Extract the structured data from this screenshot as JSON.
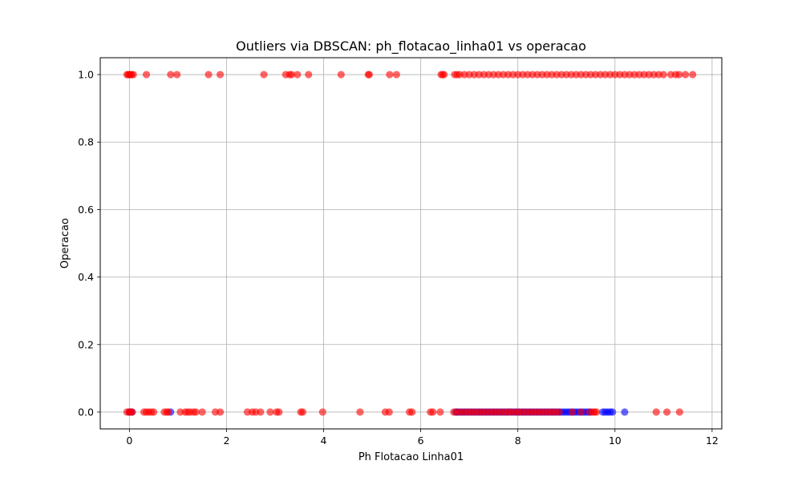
{
  "chart_data": {
    "type": "scatter",
    "title": "Outliers via DBSCAN: ph_flotacao_linha01 vs operacao",
    "xlabel": "Ph Flotacao Linha01",
    "ylabel": "Operacao",
    "xlim": [
      -0.6,
      12.2
    ],
    "ylim": [
      -0.05,
      1.05
    ],
    "xticks": [
      0,
      2,
      4,
      6,
      8,
      10,
      12
    ],
    "yticks": [
      0.0,
      0.2,
      0.4,
      0.6,
      0.8,
      1.0
    ],
    "xtick_labels": [
      "0",
      "2",
      "4",
      "6",
      "8",
      "10",
      "12"
    ],
    "ytick_labels": [
      "0.0",
      "0.2",
      "0.4",
      "0.6",
      "0.8",
      "1.0"
    ],
    "grid": true,
    "series": [
      {
        "color": "#0000ff",
        "alpha": 0.6,
        "points": [
          [
            0.0,
            0
          ],
          [
            0.02,
            0
          ],
          [
            0.05,
            0
          ],
          [
            0.85,
            0
          ],
          [
            6.72,
            0
          ],
          [
            6.75,
            0
          ],
          [
            6.8,
            0
          ],
          [
            6.85,
            0
          ],
          [
            6.9,
            0
          ],
          [
            6.95,
            0
          ],
          [
            7.0,
            0
          ],
          [
            7.05,
            0
          ],
          [
            7.1,
            0
          ],
          [
            7.15,
            0
          ],
          [
            7.2,
            0
          ],
          [
            7.25,
            0
          ],
          [
            7.3,
            0
          ],
          [
            7.35,
            0
          ],
          [
            7.4,
            0
          ],
          [
            7.45,
            0
          ],
          [
            7.5,
            0
          ],
          [
            7.55,
            0
          ],
          [
            7.6,
            0
          ],
          [
            7.65,
            0
          ],
          [
            7.7,
            0
          ],
          [
            7.75,
            0
          ],
          [
            7.8,
            0
          ],
          [
            7.85,
            0
          ],
          [
            7.9,
            0
          ],
          [
            7.95,
            0
          ],
          [
            8.0,
            0
          ],
          [
            8.05,
            0
          ],
          [
            8.1,
            0
          ],
          [
            8.15,
            0
          ],
          [
            8.2,
            0
          ],
          [
            8.25,
            0
          ],
          [
            8.3,
            0
          ],
          [
            8.35,
            0
          ],
          [
            8.4,
            0
          ],
          [
            8.45,
            0
          ],
          [
            8.5,
            0
          ],
          [
            8.55,
            0
          ],
          [
            8.6,
            0
          ],
          [
            8.65,
            0
          ],
          [
            8.7,
            0
          ],
          [
            8.75,
            0
          ],
          [
            8.8,
            0
          ],
          [
            8.85,
            0
          ],
          [
            8.9,
            0
          ],
          [
            8.95,
            0
          ],
          [
            9.0,
            0
          ],
          [
            9.05,
            0
          ],
          [
            9.1,
            0
          ],
          [
            9.15,
            0
          ],
          [
            9.2,
            0
          ],
          [
            9.25,
            0
          ],
          [
            9.3,
            0
          ],
          [
            9.35,
            0
          ],
          [
            9.4,
            0
          ],
          [
            9.45,
            0
          ],
          [
            9.5,
            0
          ],
          [
            9.75,
            0
          ],
          [
            9.8,
            0
          ],
          [
            9.85,
            0
          ],
          [
            9.9,
            0
          ],
          [
            9.95,
            0
          ],
          [
            10.2,
            0
          ]
        ]
      },
      {
        "color": "#ff0000",
        "alpha": 0.6,
        "points": [
          [
            -0.05,
            1
          ],
          [
            -0.02,
            1
          ],
          [
            0.0,
            1
          ],
          [
            0.02,
            1
          ],
          [
            0.05,
            1
          ],
          [
            0.08,
            1
          ],
          [
            0.35,
            1
          ],
          [
            0.85,
            1
          ],
          [
            0.98,
            1
          ],
          [
            1.63,
            1
          ],
          [
            1.87,
            1
          ],
          [
            2.77,
            1
          ],
          [
            3.22,
            1
          ],
          [
            3.3,
            1
          ],
          [
            3.34,
            1
          ],
          [
            3.46,
            1
          ],
          [
            3.69,
            1
          ],
          [
            4.36,
            1
          ],
          [
            4.92,
            1
          ],
          [
            4.94,
            1
          ],
          [
            5.36,
            1
          ],
          [
            5.5,
            1
          ],
          [
            6.42,
            1
          ],
          [
            6.45,
            1
          ],
          [
            6.48,
            1
          ],
          [
            6.7,
            1
          ],
          [
            6.75,
            1
          ],
          [
            6.8,
            1
          ],
          [
            6.9,
            1
          ],
          [
            7.0,
            1
          ],
          [
            7.1,
            1
          ],
          [
            7.2,
            1
          ],
          [
            7.3,
            1
          ],
          [
            7.4,
            1
          ],
          [
            7.5,
            1
          ],
          [
            7.6,
            1
          ],
          [
            7.7,
            1
          ],
          [
            7.8,
            1
          ],
          [
            7.9,
            1
          ],
          [
            8.0,
            1
          ],
          [
            8.1,
            1
          ],
          [
            8.2,
            1
          ],
          [
            8.3,
            1
          ],
          [
            8.4,
            1
          ],
          [
            8.5,
            1
          ],
          [
            8.6,
            1
          ],
          [
            8.7,
            1
          ],
          [
            8.8,
            1
          ],
          [
            8.9,
            1
          ],
          [
            9.0,
            1
          ],
          [
            9.1,
            1
          ],
          [
            9.2,
            1
          ],
          [
            9.3,
            1
          ],
          [
            9.4,
            1
          ],
          [
            9.5,
            1
          ],
          [
            9.6,
            1
          ],
          [
            9.7,
            1
          ],
          [
            9.8,
            1
          ],
          [
            9.9,
            1
          ],
          [
            10.0,
            1
          ],
          [
            10.1,
            1
          ],
          [
            10.2,
            1
          ],
          [
            10.3,
            1
          ],
          [
            10.4,
            1
          ],
          [
            10.5,
            1
          ],
          [
            10.6,
            1
          ],
          [
            10.7,
            1
          ],
          [
            10.8,
            1
          ],
          [
            10.9,
            1
          ],
          [
            11.0,
            1
          ],
          [
            11.15,
            1
          ],
          [
            11.25,
            1
          ],
          [
            11.32,
            1
          ],
          [
            11.45,
            1
          ],
          [
            11.6,
            1
          ],
          [
            -0.05,
            0
          ],
          [
            0.0,
            0
          ],
          [
            0.03,
            0
          ],
          [
            0.06,
            0
          ],
          [
            0.3,
            0
          ],
          [
            0.35,
            0
          ],
          [
            0.4,
            0
          ],
          [
            0.45,
            0
          ],
          [
            0.5,
            0
          ],
          [
            0.72,
            0
          ],
          [
            0.77,
            0
          ],
          [
            0.8,
            0
          ],
          [
            1.05,
            0
          ],
          [
            1.15,
            0
          ],
          [
            1.2,
            0
          ],
          [
            1.25,
            0
          ],
          [
            1.32,
            0
          ],
          [
            1.37,
            0
          ],
          [
            1.5,
            0
          ],
          [
            1.77,
            0
          ],
          [
            1.87,
            0
          ],
          [
            2.43,
            0
          ],
          [
            2.53,
            0
          ],
          [
            2.6,
            0
          ],
          [
            2.7,
            0
          ],
          [
            2.9,
            0
          ],
          [
            3.03,
            0
          ],
          [
            3.08,
            0
          ],
          [
            3.53,
            0
          ],
          [
            3.57,
            0
          ],
          [
            3.98,
            0
          ],
          [
            4.75,
            0
          ],
          [
            5.27,
            0
          ],
          [
            5.35,
            0
          ],
          [
            5.77,
            0
          ],
          [
            5.82,
            0
          ],
          [
            6.2,
            0
          ],
          [
            6.25,
            0
          ],
          [
            6.4,
            0
          ],
          [
            6.68,
            0
          ],
          [
            6.75,
            0
          ],
          [
            6.82,
            0
          ],
          [
            6.9,
            0
          ],
          [
            6.97,
            0
          ],
          [
            7.05,
            0
          ],
          [
            7.12,
            0
          ],
          [
            7.2,
            0
          ],
          [
            7.27,
            0
          ],
          [
            7.35,
            0
          ],
          [
            7.42,
            0
          ],
          [
            7.5,
            0
          ],
          [
            7.57,
            0
          ],
          [
            7.65,
            0
          ],
          [
            7.72,
            0
          ],
          [
            7.8,
            0
          ],
          [
            7.87,
            0
          ],
          [
            7.95,
            0
          ],
          [
            8.02,
            0
          ],
          [
            8.1,
            0
          ],
          [
            8.17,
            0
          ],
          [
            8.25,
            0
          ],
          [
            8.32,
            0
          ],
          [
            8.4,
            0
          ],
          [
            8.47,
            0
          ],
          [
            8.55,
            0
          ],
          [
            8.62,
            0
          ],
          [
            8.7,
            0
          ],
          [
            8.77,
            0
          ],
          [
            8.85,
            0
          ],
          [
            9.12,
            0
          ],
          [
            9.3,
            0
          ],
          [
            9.48,
            0
          ],
          [
            9.55,
            0
          ],
          [
            9.58,
            0
          ],
          [
            9.62,
            0
          ],
          [
            10.85,
            0
          ],
          [
            11.07,
            0
          ],
          [
            11.33,
            0
          ]
        ]
      }
    ]
  }
}
